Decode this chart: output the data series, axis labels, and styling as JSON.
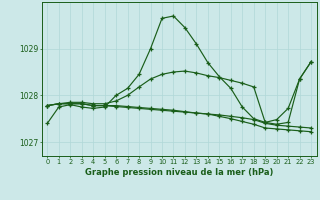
{
  "xlabel": "Graphe pression niveau de la mer (hPa)",
  "bg_color": "#cce8e8",
  "line_color": "#1a5e1a",
  "grid_color": "#b0d8d8",
  "x_ticks": [
    0,
    1,
    2,
    3,
    4,
    5,
    6,
    7,
    8,
    9,
    10,
    11,
    12,
    13,
    14,
    15,
    16,
    17,
    18,
    19,
    20,
    21,
    22,
    23
  ],
  "ylim": [
    1026.7,
    1030.0
  ],
  "yticks": [
    1027,
    1028,
    1029
  ],
  "line1": [
    1027.4,
    1027.75,
    1027.8,
    1027.75,
    1027.72,
    1027.75,
    1028.0,
    1028.15,
    1028.45,
    1029.0,
    1029.65,
    1029.7,
    1029.45,
    1029.1,
    1028.7,
    1028.4,
    1028.15,
    1027.75,
    1027.5,
    1027.42,
    1027.48,
    1027.72,
    1028.35,
    1028.72
  ],
  "line2": [
    1027.78,
    1027.82,
    1027.85,
    1027.85,
    1027.82,
    1027.82,
    1027.88,
    1028.0,
    1028.18,
    1028.35,
    1028.45,
    1028.5,
    1028.52,
    1028.48,
    1028.42,
    1028.38,
    1028.32,
    1028.26,
    1028.18,
    1027.42,
    1027.38,
    1027.42,
    1028.35,
    1028.72
  ],
  "line3": [
    1027.78,
    1027.82,
    1027.82,
    1027.82,
    1027.78,
    1027.78,
    1027.78,
    1027.76,
    1027.74,
    1027.72,
    1027.7,
    1027.68,
    1027.65,
    1027.62,
    1027.6,
    1027.58,
    1027.55,
    1027.52,
    1027.48,
    1027.4,
    1027.36,
    1027.34,
    1027.32,
    1027.3
  ],
  "line4": [
    1027.78,
    1027.82,
    1027.82,
    1027.82,
    1027.78,
    1027.78,
    1027.76,
    1027.74,
    1027.72,
    1027.7,
    1027.68,
    1027.66,
    1027.64,
    1027.62,
    1027.6,
    1027.55,
    1027.5,
    1027.44,
    1027.38,
    1027.3,
    1027.28,
    1027.26,
    1027.24,
    1027.22
  ]
}
